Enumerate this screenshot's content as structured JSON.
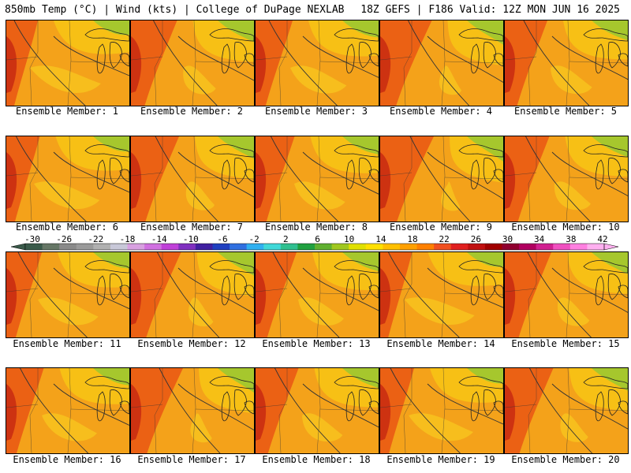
{
  "header": {
    "left": "850mb Temp (°C) | Wind (kts) | College of DuPage NEXLAB",
    "right": "18Z GEFS | F186 Valid: 12Z MON JUN 16 2025"
  },
  "members": [
    "Ensemble Member: 1",
    "Ensemble Member: 2",
    "Ensemble Member: 3",
    "Ensemble Member: 4",
    "Ensemble Member: 5",
    "Ensemble Member: 6",
    "Ensemble Member: 7",
    "Ensemble Member: 8",
    "Ensemble Member: 9",
    "Ensemble Member: 10",
    "Ensemble Member: 11",
    "Ensemble Member: 12",
    "Ensemble Member: 13",
    "Ensemble Member: 14",
    "Ensemble Member: 15",
    "Ensemble Member: 16",
    "Ensemble Member: 17",
    "Ensemble Member: 18",
    "Ensemble Member: 19",
    "Ensemble Member: 20"
  ],
  "colorbar": {
    "labels": [
      "-30",
      "-26",
      "-22",
      "-18",
      "-14",
      "-10",
      "-6",
      "-2",
      "2",
      "6",
      "10",
      "14",
      "18",
      "22",
      "26",
      "30",
      "34",
      "38",
      "42"
    ],
    "colors": [
      "#3a5a4a",
      "#667766",
      "#8a8a8a",
      "#9a9a9a",
      "#b0b0b0",
      "#c8c8d8",
      "#d8a0e0",
      "#d070e0",
      "#c040d8",
      "#8030c0",
      "#4020a0",
      "#2040c0",
      "#3070e0",
      "#30b0f0",
      "#40d8d8",
      "#30c090",
      "#20a040",
      "#60b030",
      "#a0c820",
      "#e0e000",
      "#ffe000",
      "#ffc000",
      "#ffa000",
      "#ff8000",
      "#f05020",
      "#e02020",
      "#c01010",
      "#a00000",
      "#900030",
      "#b00060",
      "#d02090",
      "#f050c0",
      "#ff80e0",
      "#ffb0f0"
    ]
  }
}
